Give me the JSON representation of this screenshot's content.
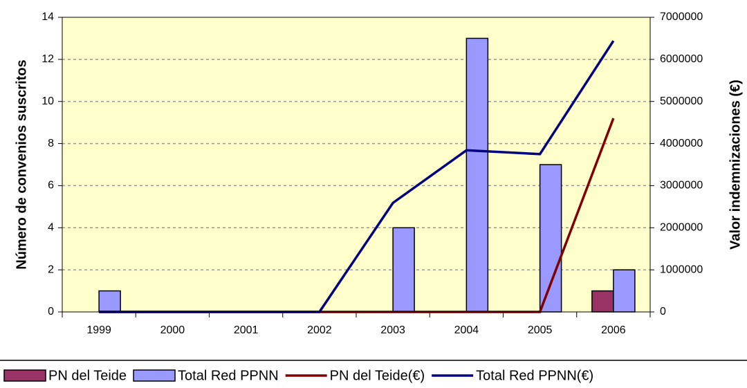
{
  "chart_data": {
    "type": "bar",
    "categories": [
      "1999",
      "2000",
      "2001",
      "2002",
      "2003",
      "2004",
      "2005",
      "2006"
    ],
    "y_label": "Número de convenios suscritos",
    "y2_label": "Valor indemnizaciones (€)",
    "ylim": [
      0,
      14
    ],
    "yticks": [
      0,
      2,
      4,
      6,
      8,
      10,
      12,
      14
    ],
    "y2lim": [
      0,
      7000000
    ],
    "y2ticks": [
      0,
      1000000,
      2000000,
      3000000,
      4000000,
      5000000,
      6000000,
      7000000
    ],
    "grid": true,
    "legend": "bottom",
    "series": [
      {
        "name": "PN del Teide",
        "type": "bar",
        "color": "#993366",
        "values": [
          0,
          0,
          0,
          0,
          0,
          0,
          0,
          1
        ]
      },
      {
        "name": "Total Red PPNN",
        "type": "bar",
        "color": "#9999ff",
        "values": [
          1,
          0,
          0,
          0,
          4,
          13,
          7,
          2
        ]
      },
      {
        "name": "PN del Teide(€)",
        "type": "line",
        "axis": "y2",
        "color": "#800000",
        "values": [
          0,
          0,
          0,
          0,
          0,
          0,
          0,
          4600000
        ]
      },
      {
        "name": "Total Red PPNN(€)",
        "type": "line",
        "axis": "y2",
        "color": "#000080",
        "values": [
          0,
          0,
          0,
          0,
          2590000,
          3840000,
          3750000,
          6440000
        ]
      }
    ]
  }
}
